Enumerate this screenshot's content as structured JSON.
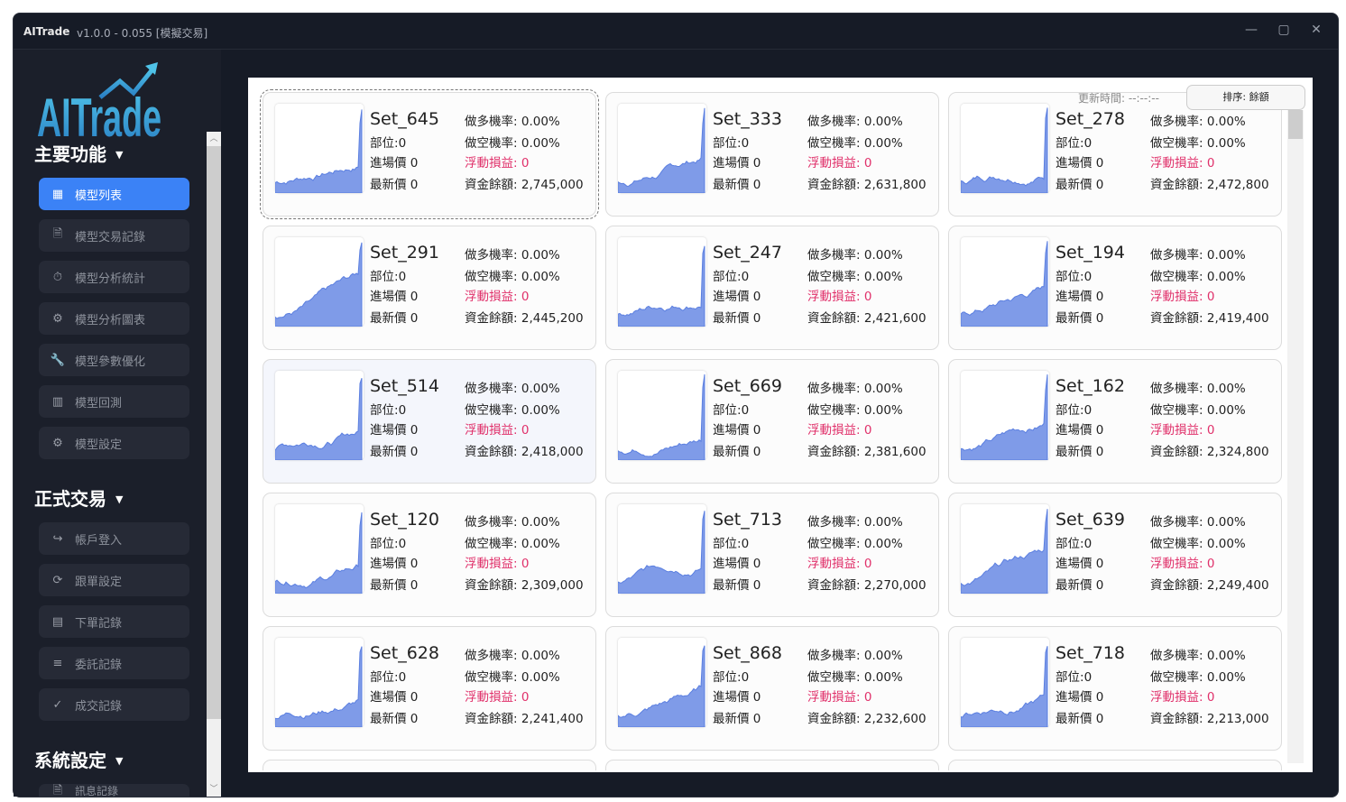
{
  "window": {
    "app_name": "AITrade",
    "version": "v1.0.0 - 0.055 [模擬交易]",
    "controls": {
      "minimize": "—",
      "maximize": "▢",
      "close": "✕"
    }
  },
  "sidebar": {
    "logo_text": "AITrade",
    "sections": [
      {
        "title": "主要功能",
        "items": [
          {
            "label": "模型列表",
            "icon": "grid-icon",
            "glyph": "▦",
            "active": true
          },
          {
            "label": "模型交易記錄",
            "icon": "document-icon",
            "glyph": "🗎"
          },
          {
            "label": "模型分析統計",
            "icon": "stopwatch-icon",
            "glyph": "⏱"
          },
          {
            "label": "模型分析圖表",
            "icon": "gear-icon",
            "glyph": "⚙"
          },
          {
            "label": "模型參數優化",
            "icon": "wrench-icon",
            "glyph": "🔧"
          },
          {
            "label": "模型回測",
            "icon": "bar-chart-icon",
            "glyph": "▥"
          },
          {
            "label": "模型設定",
            "icon": "gear-icon",
            "glyph": "⚙"
          }
        ]
      },
      {
        "title": "正式交易",
        "items": [
          {
            "label": "帳戶登入",
            "icon": "login-arrow-icon",
            "glyph": "↪"
          },
          {
            "label": "跟單設定",
            "icon": "sync-icon",
            "glyph": "⟳"
          },
          {
            "label": "下單記錄",
            "icon": "receipt-icon",
            "glyph": "▤"
          },
          {
            "label": "委託記錄",
            "icon": "list-icon",
            "glyph": "≡"
          },
          {
            "label": "成交記錄",
            "icon": "check-icon",
            "glyph": "✓"
          }
        ]
      },
      {
        "title": "系統設定",
        "items": [
          {
            "label": "訊息記錄",
            "icon": "document-icon",
            "glyph": "🗎"
          }
        ]
      }
    ]
  },
  "main": {
    "update_time": "更新時間: --:--:--",
    "sort_button": "排序: 餘額",
    "labels": {
      "position": "部位:",
      "entry": "進場價",
      "last": "最新價",
      "long": "做多機率:",
      "short": "做空機率:",
      "pnl": "浮動損益:",
      "balance": "資金餘額:"
    },
    "colors": {
      "accent": "#3b82f6",
      "sparkline": "#7f9be8",
      "pnl": "#e0306a"
    },
    "cards": [
      {
        "name": "Set_645",
        "position": "0",
        "entry": "0",
        "last": "0",
        "long": "0.00%",
        "short": "0.00%",
        "pnl": "0",
        "balance": "2,745,000"
      },
      {
        "name": "Set_333",
        "position": "0",
        "entry": "0",
        "last": "0",
        "long": "0.00%",
        "short": "0.00%",
        "pnl": "0",
        "balance": "2,631,800"
      },
      {
        "name": "Set_278",
        "position": "0",
        "entry": "0",
        "last": "0",
        "long": "0.00%",
        "short": "0.00%",
        "pnl": "0",
        "balance": "2,472,800"
      },
      {
        "name": "Set_291",
        "position": "0",
        "entry": "0",
        "last": "0",
        "long": "0.00%",
        "short": "0.00%",
        "pnl": "0",
        "balance": "2,445,200"
      },
      {
        "name": "Set_247",
        "position": "0",
        "entry": "0",
        "last": "0",
        "long": "0.00%",
        "short": "0.00%",
        "pnl": "0",
        "balance": "2,421,600"
      },
      {
        "name": "Set_194",
        "position": "0",
        "entry": "0",
        "last": "0",
        "long": "0.00%",
        "short": "0.00%",
        "pnl": "0",
        "balance": "2,419,400"
      },
      {
        "name": "Set_514",
        "position": "0",
        "entry": "0",
        "last": "0",
        "long": "0.00%",
        "short": "0.00%",
        "pnl": "0",
        "balance": "2,418,000"
      },
      {
        "name": "Set_669",
        "position": "0",
        "entry": "0",
        "last": "0",
        "long": "0.00%",
        "short": "0.00%",
        "pnl": "0",
        "balance": "2,381,600"
      },
      {
        "name": "Set_162",
        "position": "0",
        "entry": "0",
        "last": "0",
        "long": "0.00%",
        "short": "0.00%",
        "pnl": "0",
        "balance": "2,324,800"
      },
      {
        "name": "Set_120",
        "position": "0",
        "entry": "0",
        "last": "0",
        "long": "0.00%",
        "short": "0.00%",
        "pnl": "0",
        "balance": "2,309,000"
      },
      {
        "name": "Set_713",
        "position": "0",
        "entry": "0",
        "last": "0",
        "long": "0.00%",
        "short": "0.00%",
        "pnl": "0",
        "balance": "2,270,000"
      },
      {
        "name": "Set_639",
        "position": "0",
        "entry": "0",
        "last": "0",
        "long": "0.00%",
        "short": "0.00%",
        "pnl": "0",
        "balance": "2,249,400"
      },
      {
        "name": "Set_628",
        "position": "0",
        "entry": "0",
        "last": "0",
        "long": "0.00%",
        "short": "0.00%",
        "pnl": "0",
        "balance": "2,241,400"
      },
      {
        "name": "Set_868",
        "position": "0",
        "entry": "0",
        "last": "0",
        "long": "0.00%",
        "short": "0.00%",
        "pnl": "0",
        "balance": "2,232,600"
      },
      {
        "name": "Set_718",
        "position": "0",
        "entry": "0",
        "last": "0",
        "long": "0.00%",
        "short": "0.00%",
        "pnl": "0",
        "balance": "2,213,000"
      }
    ]
  }
}
